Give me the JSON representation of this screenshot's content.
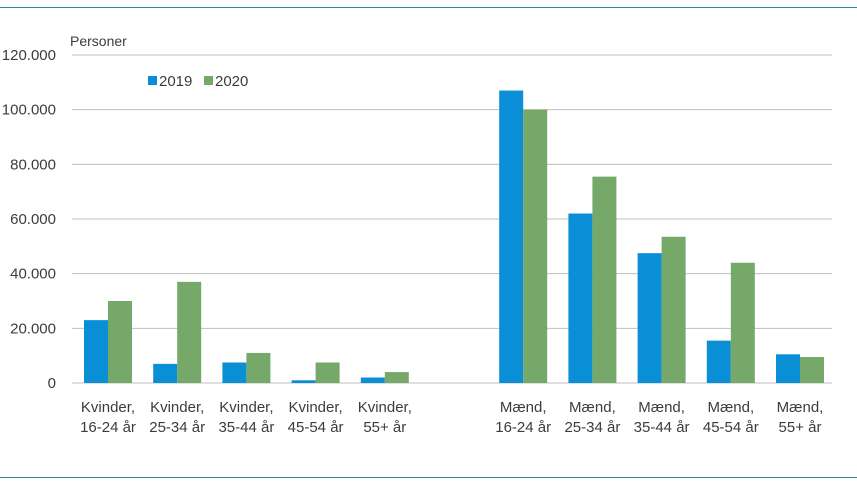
{
  "chart_data": {
    "type": "bar",
    "ylabel": "Personer",
    "ylim": [
      0,
      120000
    ],
    "yticks": [
      0,
      20000,
      40000,
      60000,
      80000,
      100000,
      120000
    ],
    "ytick_labels": [
      "0",
      "20.000",
      "40.000",
      "60.000",
      "80.000",
      "100.000",
      "120.000"
    ],
    "grid": true,
    "legend_position": "top-left",
    "categories": [
      [
        "Kvinder,",
        "16-24 år"
      ],
      [
        "Kvinder,",
        "25-34 år"
      ],
      [
        "Kvinder,",
        "35-44 år"
      ],
      [
        "Kvinder,",
        "45-54 år"
      ],
      [
        "Kvinder,",
        "55+ år"
      ],
      [
        "",
        ""
      ],
      [
        "Mænd,",
        "16-24 år"
      ],
      [
        "Mænd,",
        "25-34 år"
      ],
      [
        "Mænd,",
        "35-44 år"
      ],
      [
        "Mænd,",
        "45-54 år"
      ],
      [
        "Mænd,",
        "55+ år"
      ]
    ],
    "series": [
      {
        "name": "2019",
        "color": "#0a8fd6",
        "values": [
          23000,
          7000,
          7500,
          1000,
          2000,
          null,
          107000,
          62000,
          47500,
          15500,
          10500
        ]
      },
      {
        "name": "2020",
        "color": "#76a86a",
        "values": [
          30000,
          37000,
          11000,
          7500,
          4000,
          null,
          100000,
          75500,
          53500,
          44000,
          9500
        ]
      }
    ]
  },
  "colors": {
    "frame": "#2a8a9e",
    "grid": "#bfbfbf",
    "text": "#3c3c3c"
  }
}
